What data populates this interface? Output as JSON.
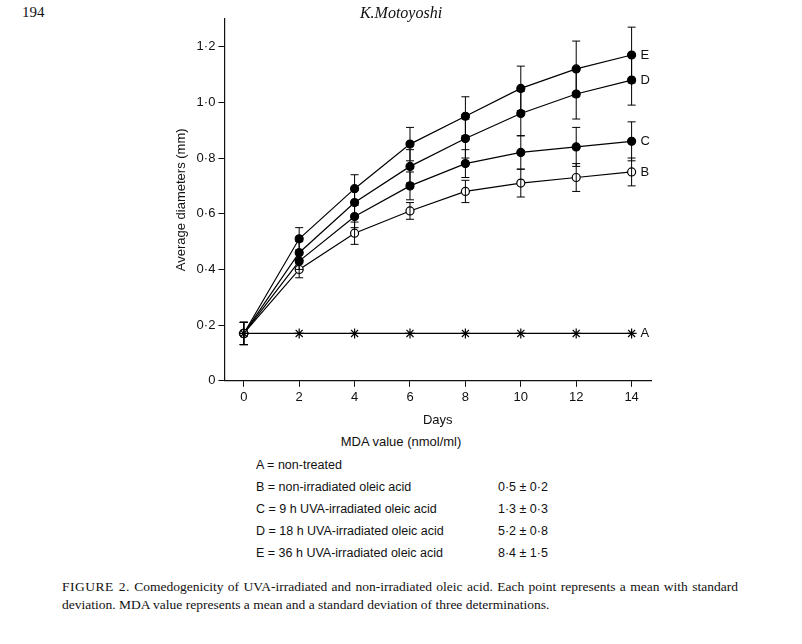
{
  "page": {
    "number": "194",
    "running_head": "K.Motoyoshi"
  },
  "chart_data": {
    "type": "line",
    "x_label": "Days",
    "y_label": "Average diameters (mm)",
    "x": [
      0,
      2,
      4,
      6,
      8,
      10,
      12,
      14
    ],
    "xlim": [
      -0.7,
      14.7
    ],
    "xticks": [
      0,
      2,
      4,
      6,
      8,
      10,
      12,
      14
    ],
    "ylim": [
      0,
      1.3
    ],
    "yticks": [
      0,
      {
        "value": 0.2,
        "label": "0·2"
      },
      {
        "value": 0.4,
        "label": "0·4"
      },
      {
        "value": 0.6,
        "label": "0·6"
      },
      {
        "value": 0.8,
        "label": "0·8"
      },
      {
        "value": 1.0,
        "label": "1·0"
      },
      {
        "value": 1.2,
        "label": "1·2"
      }
    ],
    "grid": false,
    "series": [
      {
        "name": "A",
        "color": "#000000",
        "marker": "asterisk",
        "line_style": "solid",
        "values": [
          0.17,
          0.17,
          0.17,
          0.17,
          0.17,
          0.17,
          0.17,
          0.17
        ],
        "errors": [
          0.04,
          null,
          null,
          null,
          null,
          null,
          null,
          null
        ]
      },
      {
        "name": "B",
        "color": "#000000",
        "marker": "open_circle",
        "line_style": "solid",
        "values": [
          0.17,
          0.4,
          0.53,
          0.61,
          0.68,
          0.71,
          0.73,
          0.75
        ],
        "errors": [
          0.04,
          0.03,
          0.04,
          0.03,
          0.04,
          0.05,
          0.05,
          0.05
        ]
      },
      {
        "name": "C",
        "color": "#000000",
        "marker": "filled_circle",
        "line_style": "solid",
        "values": [
          0.17,
          0.43,
          0.59,
          0.7,
          0.78,
          0.82,
          0.84,
          0.86
        ],
        "errors": [
          0.04,
          0.03,
          0.04,
          0.05,
          0.05,
          0.06,
          0.07,
          0.07
        ]
      },
      {
        "name": "D",
        "color": "#000000",
        "marker": "filled_circle",
        "line_style": "solid",
        "values": [
          0.17,
          0.46,
          0.64,
          0.77,
          0.87,
          0.96,
          1.03,
          1.08
        ],
        "errors": [
          0.04,
          0.04,
          0.05,
          0.06,
          0.07,
          0.08,
          0.09,
          0.09
        ]
      },
      {
        "name": "E",
        "color": "#000000",
        "marker": "filled_circle",
        "line_style": "solid",
        "values": [
          0.17,
          0.51,
          0.69,
          0.85,
          0.95,
          1.05,
          1.12,
          1.17
        ],
        "errors": [
          0.04,
          0.04,
          0.05,
          0.06,
          0.07,
          0.08,
          0.1,
          0.1
        ]
      }
    ]
  },
  "key": {
    "heading": "MDA value (nmol/ml)",
    "rows": [
      {
        "text": "A = non-treated"
      },
      {
        "text": "B = non-irradiated oleic acid",
        "mda": "0·5 ± 0·2"
      },
      {
        "text": "C = 9 h UVA-irradiated oleic acid",
        "mda": "1·3 ± 0·3"
      },
      {
        "text": "D = 18 h UVA-irradiated oleic acid",
        "mda": "5·2 ± 0·8"
      },
      {
        "text": "E = 36 h UVA-irradiated oleic acid",
        "mda": "8·4 ± 1·5"
      }
    ]
  },
  "caption": {
    "label": "FIGURE 2.",
    "text": "Comedogenicity of UVA-irradiated and non-irradiated oleic acid. Each point represents a mean with standard deviation. MDA value represents a mean and a standard deviation of three determinations."
  }
}
